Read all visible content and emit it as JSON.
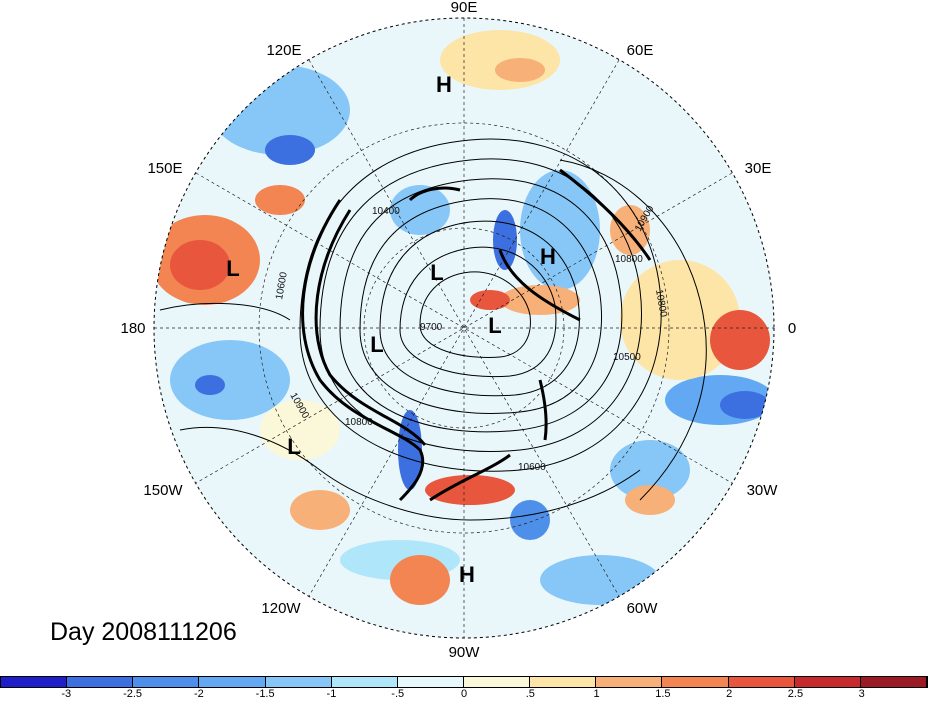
{
  "title": "Day 2008111206",
  "longitude_labels": [
    "90E",
    "60E",
    "30E",
    "0",
    "30W",
    "60W",
    "90W",
    "120W",
    "150W",
    "180",
    "150E",
    "120E"
  ],
  "pressure_centers": [
    {
      "label": "H",
      "name": "high-siberia"
    },
    {
      "label": "H",
      "name": "high-europe"
    },
    {
      "label": "H",
      "name": "high-caribbean"
    },
    {
      "label": "L",
      "name": "low-pacific-west"
    },
    {
      "label": "L",
      "name": "low-arctic-siberia"
    },
    {
      "label": "L",
      "name": "low-arctic-canada"
    },
    {
      "label": "L",
      "name": "low-arctic-pacific"
    },
    {
      "label": "L",
      "name": "low-north-pacific"
    }
  ],
  "contour_labels": [
    "10800",
    "10900",
    "10800",
    "9700",
    "10500",
    "10600",
    "10900",
    "10800",
    "10400",
    "10600"
  ],
  "colorbar": {
    "colors": [
      "#1f1fc8",
      "#3c6fdf",
      "#4e8fea",
      "#62a8f2",
      "#86c7f7",
      "#b0e6f9",
      "#e6f8fb",
      "#fbf7d9",
      "#fde4a7",
      "#f6b078",
      "#f28552",
      "#e8563d",
      "#c72a2d",
      "#9c1a23"
    ],
    "tick_labels": [
      "-3",
      "-2.5",
      "-2",
      "-1.5",
      "-1",
      "-.5",
      "0",
      ".5",
      "1",
      "1.5",
      "2",
      "2.5",
      "3"
    ]
  }
}
